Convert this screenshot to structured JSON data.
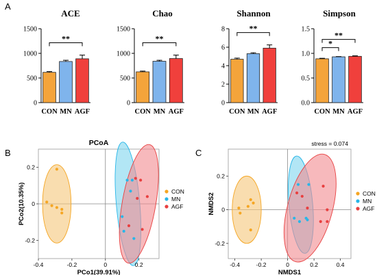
{
  "panel_labels": [
    "A",
    "B",
    "C"
  ],
  "colors": {
    "CON": "#f5a623",
    "MN": "#29b6e8",
    "AGF": "#e84040",
    "bar_CON": "#f4a43b",
    "bar_MN": "#7fb4ec",
    "bar_AGF": "#f0403c",
    "ellipse_CON": "#f5c77a",
    "ellipse_MN": "#7fd6ef",
    "ellipse_AGF": "#f28a8f"
  },
  "chart_data": [
    {
      "type": "bar",
      "title": "ACE",
      "categories": [
        "CON",
        "MN",
        "AGF"
      ],
      "values": [
        615,
        835,
        890
      ],
      "errors": [
        15,
        25,
        75
      ],
      "ylim": [
        0,
        1500
      ],
      "yticks": [
        "0",
        "500",
        "1000",
        "1500"
      ],
      "significance": [
        {
          "from": "CON",
          "to": "AGF",
          "label": "**"
        }
      ]
    },
    {
      "type": "bar",
      "title": "Chao",
      "categories": [
        "CON",
        "MN",
        "AGF"
      ],
      "values": [
        625,
        840,
        895
      ],
      "errors": [
        15,
        20,
        70
      ],
      "ylim": [
        0,
        1500
      ],
      "yticks": [
        "0",
        "500",
        "1000",
        "1500"
      ],
      "significance": [
        {
          "from": "CON",
          "to": "AGF",
          "label": "**"
        }
      ]
    },
    {
      "type": "bar",
      "title": "Shannon",
      "categories": [
        "CON",
        "MN",
        "AGF"
      ],
      "values": [
        4.7,
        5.3,
        5.9
      ],
      "errors": [
        0.12,
        0.1,
        0.35
      ],
      "ylim": [
        0,
        8
      ],
      "yticks": [
        "0",
        "2",
        "4",
        "6",
        "8"
      ],
      "significance": [
        {
          "from": "CON",
          "to": "AGF",
          "label": "**"
        }
      ]
    },
    {
      "type": "bar",
      "title": "Simpson",
      "categories": [
        "CON",
        "MN",
        "AGF"
      ],
      "values": [
        0.89,
        0.93,
        0.94
      ],
      "errors": [
        0.01,
        0.005,
        0.01
      ],
      "ylim": [
        0,
        1.5
      ],
      "yticks": [
        "0.0",
        "0.5",
        "1.0",
        "1.5"
      ],
      "significance": [
        {
          "from": "CON",
          "to": "MN",
          "label": "*"
        },
        {
          "from": "CON",
          "to": "AGF",
          "label": "**"
        }
      ]
    },
    {
      "type": "scatter",
      "title": "PCoA",
      "xlabel": "PCo1(39.91%)",
      "ylabel": "PCo2(10.35%)",
      "xlim": [
        -0.4,
        0.32
      ],
      "ylim": [
        -0.3,
        0.3
      ],
      "xticks": [
        -0.4,
        -0.2,
        0.0,
        0.2
      ],
      "yticks": [
        -0.2,
        0.0,
        0.2
      ],
      "xtick_labels": [
        "-0.4",
        "-0.2",
        "0",
        "0.2"
      ],
      "ytick_labels": [
        "-0.2",
        "0",
        "0.2"
      ],
      "legend": [
        "CON",
        "MN",
        "AGF"
      ],
      "series": [
        {
          "name": "CON",
          "points": [
            [
              -0.29,
              0.19
            ],
            [
              -0.35,
              0.01
            ],
            [
              -0.32,
              -0.01
            ],
            [
              -0.29,
              -0.02
            ],
            [
              -0.26,
              -0.03
            ],
            [
              -0.26,
              -0.05
            ]
          ],
          "ellipse": {
            "cx": -0.29,
            "cy": 0.0,
            "rx": 0.085,
            "ry": 0.215,
            "angle": 0
          }
        },
        {
          "name": "MN",
          "points": [
            [
              0.13,
              0.13
            ],
            [
              0.16,
              0.13
            ],
            [
              0.15,
              0.07
            ],
            [
              0.1,
              -0.07
            ],
            [
              0.11,
              -0.15
            ],
            [
              0.17,
              -0.19
            ]
          ],
          "ellipse": {
            "cx": 0.135,
            "cy": 0.0,
            "rx": 0.07,
            "ry": 0.34,
            "angle": -5
          }
        },
        {
          "name": "AGF",
          "points": [
            [
              0.18,
              0.14
            ],
            [
              0.21,
              0.13
            ],
            [
              0.19,
              0.03
            ],
            [
              0.25,
              0.04
            ],
            [
              0.14,
              -0.12
            ],
            [
              0.22,
              -0.14
            ]
          ],
          "ellipse": {
            "cx": 0.2,
            "cy": 0.0,
            "rx": 0.1,
            "ry": 0.33,
            "angle": 10
          }
        }
      ]
    },
    {
      "type": "scatter",
      "title": "",
      "annotation": "stress = 0.074",
      "xlabel": "NMDS1",
      "ylabel": "NMDS2",
      "xlim": [
        -0.45,
        0.48
      ],
      "ylim": [
        -0.29,
        0.36
      ],
      "xticks": [
        -0.4,
        -0.2,
        0.0,
        0.2,
        0.4
      ],
      "yticks": [
        -0.2,
        0.0,
        0.2
      ],
      "xtick_labels": [
        "-0.4",
        "-0.2",
        "0",
        "0.2",
        "0.4"
      ],
      "ytick_labels": [
        "-0.2",
        "0",
        "0.2"
      ],
      "legend": [
        "CON",
        "MN",
        "AGF"
      ],
      "series": [
        {
          "name": "CON",
          "points": [
            [
              -0.28,
              0.06
            ],
            [
              -0.26,
              0.04
            ],
            [
              -0.3,
              0.02
            ],
            [
              -0.37,
              0.01
            ],
            [
              -0.36,
              -0.02
            ],
            [
              -0.28,
              -0.12
            ]
          ],
          "ellipse": {
            "cx": -0.31,
            "cy": 0.0,
            "rx": 0.11,
            "ry": 0.2,
            "angle": 0
          }
        },
        {
          "name": "MN",
          "points": [
            [
              0.08,
              0.15
            ],
            [
              0.16,
              0.15
            ],
            [
              0.05,
              -0.05
            ],
            [
              0.09,
              -0.07
            ],
            [
              0.14,
              -0.05
            ],
            [
              0.15,
              -0.06
            ]
          ],
          "ellipse": {
            "cx": 0.1,
            "cy": 0.03,
            "rx": 0.09,
            "ry": 0.29,
            "angle": -5
          }
        },
        {
          "name": "AGF",
          "points": [
            [
              0.07,
              0.1
            ],
            [
              0.11,
              0.08
            ],
            [
              0.27,
              0.14
            ],
            [
              0.15,
              0.01
            ],
            [
              0.25,
              -0.07
            ],
            [
              0.3,
              -0.07
            ],
            [
              0.3,
              0.0
            ]
          ],
          "ellipse": {
            "cx": 0.17,
            "cy": 0.01,
            "rx": 0.17,
            "ry": 0.33,
            "angle": 15
          }
        }
      ]
    }
  ]
}
